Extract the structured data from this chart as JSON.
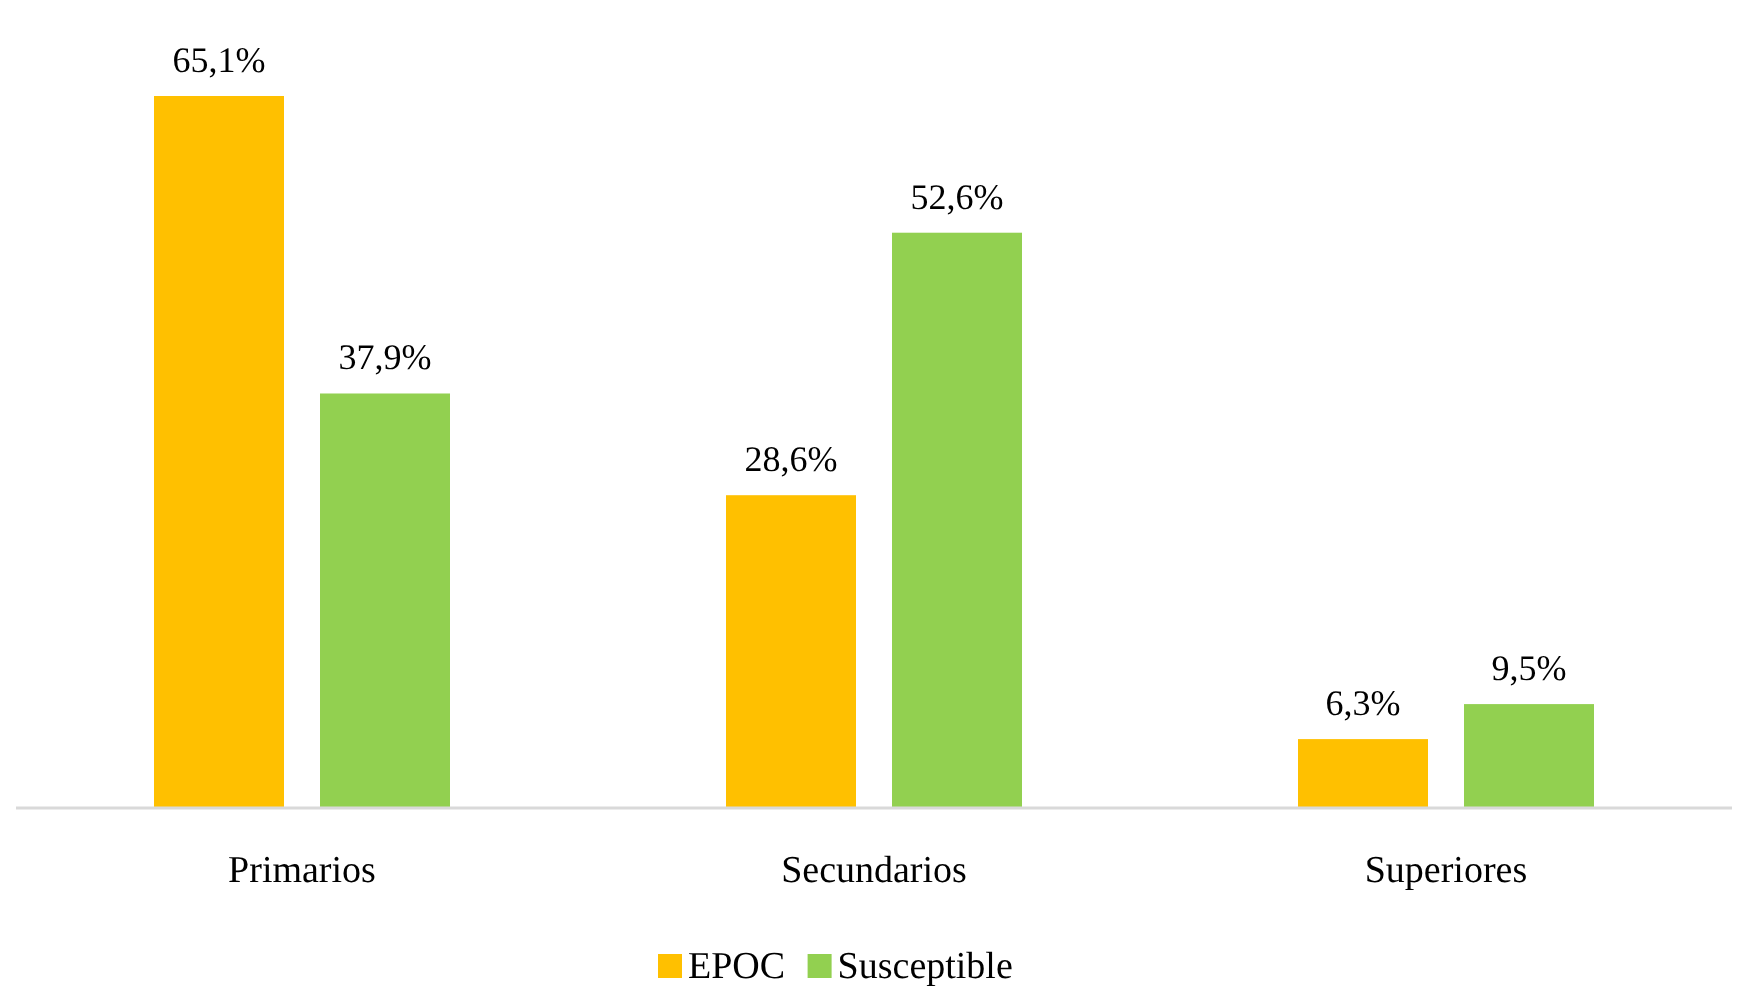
{
  "chart_data": {
    "type": "bar",
    "categories": [
      "Primarios",
      "Secundarios",
      "Superiores"
    ],
    "series": [
      {
        "name": "EPOC",
        "color": "#ffc000",
        "values": [
          65.1,
          28.6,
          6.3
        ],
        "value_labels": [
          "65,1%",
          "28,6%",
          "6,3%"
        ]
      },
      {
        "name": "Susceptible",
        "color": "#92d050",
        "values": [
          37.9,
          52.6,
          9.5
        ],
        "value_labels": [
          "37,9%",
          "52,6%",
          "9,5%"
        ]
      }
    ],
    "tick_labels": "x",
    "legend": "bottom"
  }
}
